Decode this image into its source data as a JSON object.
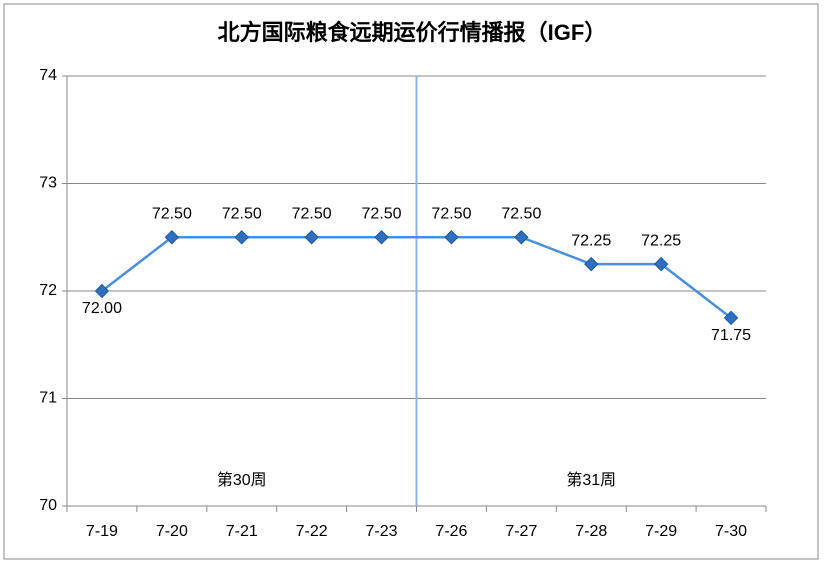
{
  "chart_data": {
    "type": "line",
    "title": "北方国际粮食远期运价行情播报（IGF）",
    "categories": [
      "7-19",
      "7-20",
      "7-21",
      "7-22",
      "7-23",
      "7-26",
      "7-27",
      "7-28",
      "7-29",
      "7-30"
    ],
    "series": [
      {
        "name": "IGF",
        "color": "#4a90d9",
        "values": [
          72.0,
          72.5,
          72.5,
          72.5,
          72.5,
          72.5,
          72.5,
          72.25,
          72.25,
          71.75
        ],
        "value_labels": [
          "72.00",
          "72.50",
          "72.50",
          "72.50",
          "72.50",
          "72.50",
          "72.50",
          "72.25",
          "72.25",
          "71.75"
        ]
      }
    ],
    "annotations": [
      "第30周",
      "第31周"
    ],
    "ylim": [
      70,
      74
    ],
    "yticks": [
      70,
      71,
      72,
      73,
      74
    ],
    "grid": true
  }
}
